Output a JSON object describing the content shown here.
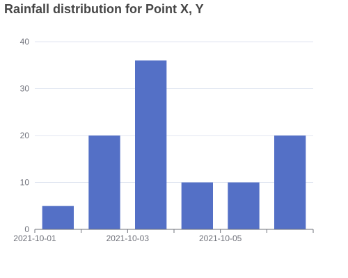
{
  "chart_data": {
    "type": "bar",
    "title": "Rainfall distribution for Point X, Y",
    "xlabel": "",
    "ylabel": "",
    "categories": [
      "2021-10-01",
      "2021-10-02",
      "2021-10-03",
      "2021-10-04",
      "2021-10-05",
      "2021-10-06"
    ],
    "x_tick_labels": [
      "2021-10-01",
      "2021-10-03",
      "2021-10-05"
    ],
    "values": [
      5,
      20,
      36,
      10,
      10,
      20
    ],
    "ylim": [
      0,
      40
    ],
    "y_ticks": [
      "0",
      "10",
      "20",
      "30",
      "40"
    ],
    "grid": true,
    "legend": "none",
    "bar_color": "#5470c6",
    "grid_color": "#e0e6f1",
    "axis_color": "#6e7079"
  }
}
